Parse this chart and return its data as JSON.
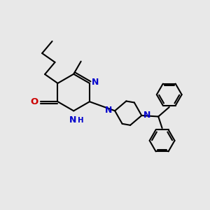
{
  "bg_color": "#e8e8e8",
  "bond_color": "#000000",
  "N_color": "#0000cc",
  "O_color": "#cc0000",
  "font_size": 9.0,
  "lw": 1.5,
  "fig_w": 3.0,
  "fig_h": 3.0,
  "dpi": 100,
  "xlim": [
    0,
    10
  ],
  "ylim": [
    0,
    10
  ]
}
